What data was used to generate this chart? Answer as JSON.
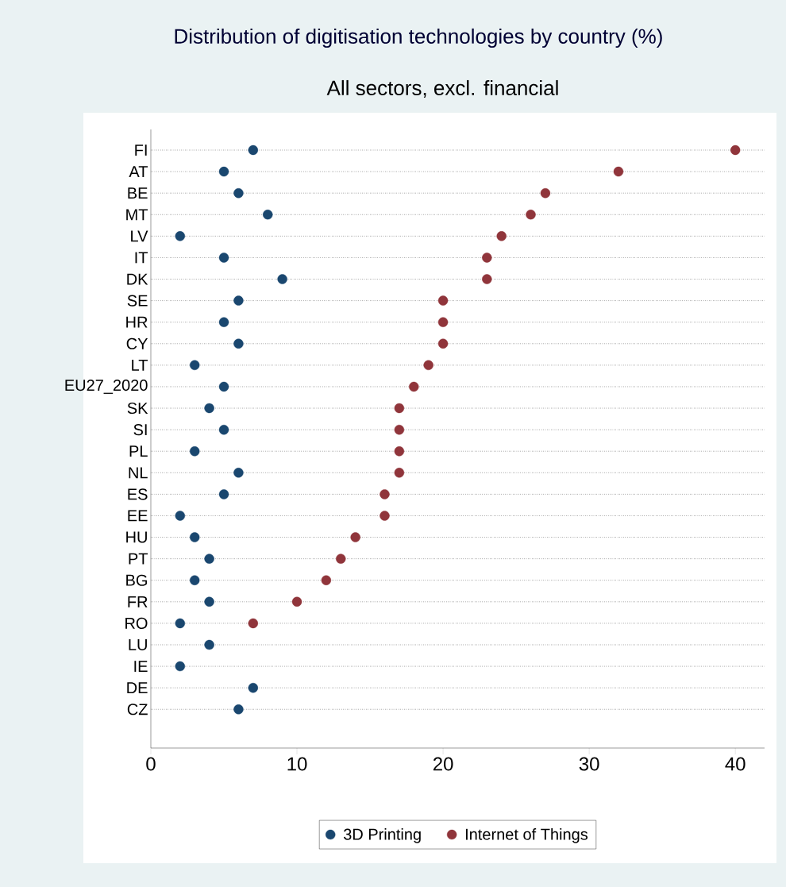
{
  "chart_data": {
    "type": "scatter",
    "orientation": "horizontal",
    "title": "Distribution of digitisation technologies by country (%)",
    "subtitle": "All sectors, excl. financial",
    "categories": [
      "FI",
      "AT",
      "BE",
      "MT",
      "LV",
      "IT",
      "DK",
      "SE",
      "HR",
      "CY",
      "LT",
      "EU27_2020",
      "SK",
      "SI",
      "PL",
      "NL",
      "ES",
      "EE",
      "HU",
      "PT",
      "BG",
      "FR",
      "RO",
      "LU",
      "IE",
      "DE",
      "CZ"
    ],
    "series": [
      {
        "name": "3D Printing",
        "color": "#1a476f",
        "values": [
          7,
          5,
          6,
          8,
          2,
          5,
          9,
          6,
          5,
          6,
          3,
          5,
          4,
          5,
          3,
          6,
          5,
          2,
          3,
          4,
          3,
          4,
          2,
          4,
          2,
          7,
          6
        ]
      },
      {
        "name": "Internet of Things",
        "color": "#90353b",
        "values": [
          40,
          32,
          27,
          26,
          24,
          23,
          23,
          20,
          20,
          20,
          19,
          18,
          17,
          17,
          17,
          17,
          16,
          16,
          14,
          13,
          12,
          10,
          7,
          null,
          null,
          null,
          null
        ]
      }
    ],
    "xlim": [
      0,
      42
    ],
    "xticks": [
      0,
      10,
      20,
      30,
      40
    ],
    "grid": "y",
    "legend": "bottom",
    "marker": "circle"
  }
}
